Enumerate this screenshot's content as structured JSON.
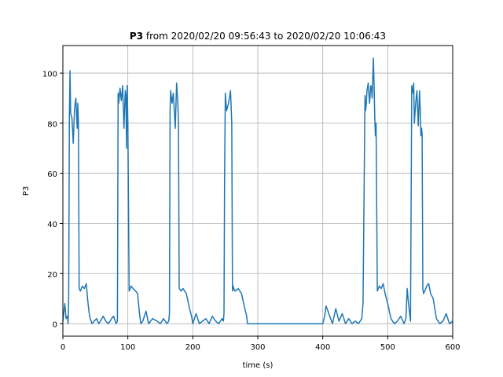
{
  "chart_data": {
    "type": "line",
    "title_bold": "P3",
    "title_rest": "from 2020/02/20 09:56:43 to 2020/02/20 10:06:43",
    "xlabel": "time (s)",
    "ylabel": "P3",
    "xlim": [
      0,
      600
    ],
    "ylim": [
      -5,
      111
    ],
    "xticks": [
      0,
      100,
      200,
      300,
      400,
      500,
      600
    ],
    "yticks": [
      0,
      20,
      40,
      60,
      80,
      100
    ],
    "grid": true,
    "line_color": "#1f77b4",
    "series": [
      {
        "x": [
          0,
          3,
          5,
          7,
          8,
          9,
          10,
          11,
          12,
          14,
          16,
          18,
          20,
          22,
          23,
          24,
          25,
          27,
          30,
          33,
          36,
          38,
          40,
          42,
          45,
          48,
          52,
          55,
          58,
          62,
          66,
          70,
          75,
          78,
          82,
          84,
          85,
          86,
          88,
          90,
          92,
          94,
          96,
          97,
          98,
          99,
          100,
          102,
          105,
          108,
          112,
          115,
          118,
          120,
          123,
          128,
          132,
          138,
          145,
          150,
          155,
          160,
          163,
          164,
          165,
          166,
          168,
          170,
          173,
          175,
          177,
          178,
          179,
          182,
          185,
          190,
          195,
          198,
          200,
          205,
          210,
          215,
          220,
          225,
          230,
          235,
          240,
          245,
          247,
          248,
          249,
          250,
          252,
          255,
          258,
          260,
          261,
          262,
          263,
          265,
          270,
          275,
          280,
          283,
          284,
          285,
          290,
          300,
          320,
          350,
          380,
          400,
          403,
          405,
          408,
          412,
          415,
          420,
          425,
          430,
          435,
          440,
          445,
          450,
          455,
          460,
          462,
          465,
          466,
          467,
          468,
          470,
          472,
          474,
          475,
          476,
          477,
          478,
          479,
          480,
          481,
          482,
          484,
          487,
          490,
          493,
          496,
          500,
          505,
          510,
          515,
          520,
          525,
          528,
          530,
          532,
          535,
          537,
          538,
          539,
          540,
          541,
          543,
          545,
          547,
          549,
          550,
          551,
          552,
          553,
          554,
          555,
          557,
          560,
          563,
          566,
          570,
          575,
          580,
          585,
          590,
          595,
          600
        ],
        "values": [
          1,
          8,
          2,
          3,
          0,
          10,
          84,
          101,
          84,
          82,
          72,
          86,
          90,
          78,
          88,
          80,
          14,
          13,
          15,
          14,
          16,
          10,
          5,
          2,
          0,
          1,
          2,
          0,
          1,
          3,
          1,
          0,
          2,
          3,
          0,
          1,
          92,
          88,
          94,
          89,
          95,
          78,
          93,
          91,
          70,
          95,
          80,
          13,
          15,
          14,
          13,
          12,
          4,
          0,
          1,
          5,
          0,
          2,
          1,
          0,
          2,
          0,
          1,
          4,
          85,
          93,
          88,
          92,
          78,
          96,
          88,
          80,
          14,
          13,
          14,
          12,
          6,
          3,
          0,
          4,
          0,
          1,
          2,
          0,
          3,
          1,
          0,
          2,
          1,
          4,
          60,
          92,
          85,
          88,
          93,
          80,
          13,
          15,
          14,
          13,
          14,
          12,
          6,
          3,
          0,
          0,
          0,
          0,
          0,
          0,
          0,
          0,
          3,
          7,
          5,
          2,
          0,
          6,
          1,
          4,
          0,
          2,
          0,
          1,
          0,
          2,
          8,
          91,
          85,
          88,
          93,
          96,
          88,
          95,
          94,
          90,
          98,
          106,
          95,
          83,
          75,
          80,
          13,
          15,
          14,
          16,
          12,
          8,
          2,
          0,
          1,
          3,
          0,
          2,
          14,
          8,
          1,
          95,
          93,
          92,
          96,
          80,
          88,
          93,
          79,
          93,
          85,
          75,
          78,
          76,
          14,
          12,
          13,
          15,
          16,
          12,
          10,
          2,
          0,
          1,
          4,
          0,
          1
        ]
      }
    ]
  }
}
